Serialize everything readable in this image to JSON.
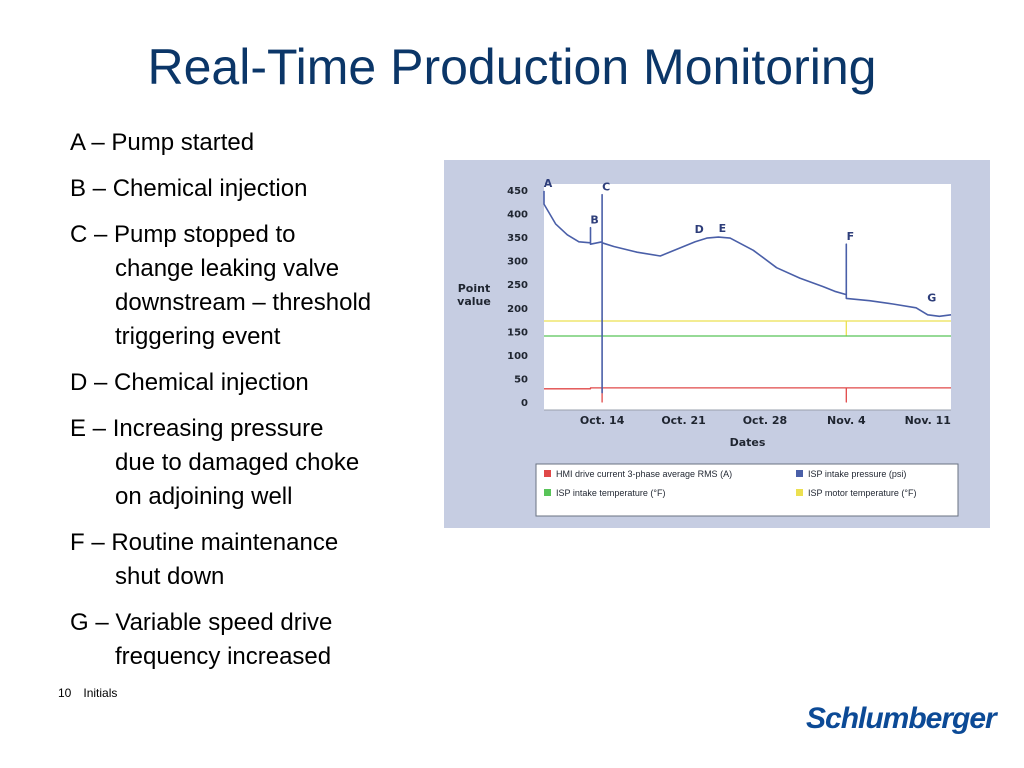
{
  "title": "Real-Time Production Monitoring",
  "events": [
    {
      "lines": [
        "A – Pump started"
      ]
    },
    {
      "lines": [
        "B – Chemical injection"
      ]
    },
    {
      "lines": [
        "C – Pump stopped to",
        "change leaking valve",
        "downstream – threshold",
        "triggering event"
      ]
    },
    {
      "lines": [
        "D – Chemical injection"
      ]
    },
    {
      "lines": [
        "E – Increasing pressure",
        "due to damaged choke",
        "on adjoining well"
      ]
    },
    {
      "lines": [
        "F – Routine maintenance",
        "shut down"
      ]
    },
    {
      "lines": [
        "G – Variable speed drive",
        "frequency increased"
      ]
    }
  ],
  "footer": {
    "page": "10",
    "label": "Initials"
  },
  "logo": "Schlumberger",
  "colors": {
    "title": "#0b3668",
    "panel": "#c6cde2",
    "pressure": "#4a5fa8",
    "current": "#e04848",
    "intake_temp": "#58c458",
    "motor_temp": "#ece050",
    "logo": "#0c4a96"
  },
  "chart_data": {
    "type": "line",
    "ylabel": "Point value",
    "xlabel": "Dates",
    "ylim": [
      0,
      450
    ],
    "yticks": [
      0,
      50,
      100,
      150,
      200,
      250,
      300,
      350,
      400,
      450
    ],
    "x_range": [
      "Oct. 9",
      "Nov. 13"
    ],
    "x_ticks": [
      {
        "label": "Oct. 14",
        "date": "Oct. 14"
      },
      {
        "label": "Oct. 21",
        "date": "Oct. 21"
      },
      {
        "label": "Oct. 28",
        "date": "Oct. 28"
      },
      {
        "label": "Nov. 4",
        "date": "Nov. 4"
      },
      {
        "label": "Nov. 11",
        "date": "Nov. 11"
      }
    ],
    "grid": false,
    "legend_placement": "bottom",
    "series": [
      {
        "name": "HMI drive current 3-phase average RMS (A)",
        "color": "#e04848",
        "points": [
          [
            "Oct. 9",
            28
          ],
          [
            "Oct. 13",
            28
          ],
          [
            "Oct. 13",
            30
          ],
          [
            "Oct. 14",
            30
          ],
          [
            "Oct. 14",
            0
          ],
          [
            "Oct. 14",
            30
          ],
          [
            "Nov. 4",
            30
          ],
          [
            "Nov. 4",
            0
          ],
          [
            "Nov. 4",
            30
          ],
          [
            "Nov. 13",
            30
          ]
        ]
      },
      {
        "name": "ISP intake pressure (psi)",
        "color": "#4a5fa8",
        "points": [
          [
            "Oct. 9",
            448
          ],
          [
            "Oct. 9",
            420
          ],
          [
            "Oct. 10",
            378
          ],
          [
            "Oct. 11",
            355
          ],
          [
            "Oct. 12",
            340
          ],
          [
            "Oct. 13",
            338
          ],
          [
            "Oct. 13",
            370
          ],
          [
            "Oct. 13",
            335
          ],
          [
            "Oct. 14",
            340
          ],
          [
            "Oct. 14",
            440
          ],
          [
            "Oct. 14",
            20
          ],
          [
            "Oct. 14",
            338
          ],
          [
            "Oct. 15",
            330
          ],
          [
            "Oct. 17",
            318
          ],
          [
            "Oct. 19",
            310
          ],
          [
            "Oct. 20",
            320
          ],
          [
            "Oct. 22",
            340
          ],
          [
            "Oct. 23",
            348
          ],
          [
            "Oct. 24",
            350
          ],
          [
            "Oct. 25",
            348
          ],
          [
            "Oct. 27",
            322
          ],
          [
            "Oct. 29",
            285
          ],
          [
            "Oct. 31",
            263
          ],
          [
            "Nov. 2",
            245
          ],
          [
            "Nov. 3",
            235
          ],
          [
            "Nov. 4",
            228
          ],
          [
            "Nov. 4",
            335
          ],
          [
            "Nov. 4",
            220
          ],
          [
            "Nov. 6",
            215
          ],
          [
            "Nov. 8",
            208
          ],
          [
            "Nov. 10",
            200
          ],
          [
            "Nov. 11",
            185
          ],
          [
            "Nov. 12",
            182
          ],
          [
            "Nov. 13",
            185
          ]
        ]
      },
      {
        "name": "ISP intake temperature (°F)",
        "color": "#58c458",
        "points": [
          [
            "Oct. 9",
            140
          ],
          [
            "Oct. 14",
            140
          ],
          [
            "Oct. 14",
            142
          ],
          [
            "Oct. 14",
            140
          ],
          [
            "Nov. 13",
            140
          ]
        ]
      },
      {
        "name": "ISP motor temperature (°F)",
        "color": "#ece050",
        "points": [
          [
            "Oct. 9",
            172
          ],
          [
            "Oct. 14",
            172
          ],
          [
            "Oct. 14",
            178
          ],
          [
            "Oct. 14",
            172
          ],
          [
            "Nov. 4",
            172
          ],
          [
            "Nov. 4",
            140
          ],
          [
            "Nov. 4",
            172
          ],
          [
            "Nov. 13",
            172
          ]
        ]
      }
    ],
    "annotations": [
      {
        "label": "A",
        "x": "Oct. 9",
        "y": 448
      },
      {
        "label": "B",
        "x": "Oct. 13",
        "y": 370
      },
      {
        "label": "C",
        "x": "Oct. 14",
        "y": 440
      },
      {
        "label": "D",
        "x": "Oct. 22",
        "y": 350
      },
      {
        "label": "E",
        "x": "Oct. 24",
        "y": 352
      },
      {
        "label": "F",
        "x": "Nov. 4",
        "y": 335
      },
      {
        "label": "G",
        "x": "Nov. 11",
        "y": 205
      }
    ]
  }
}
